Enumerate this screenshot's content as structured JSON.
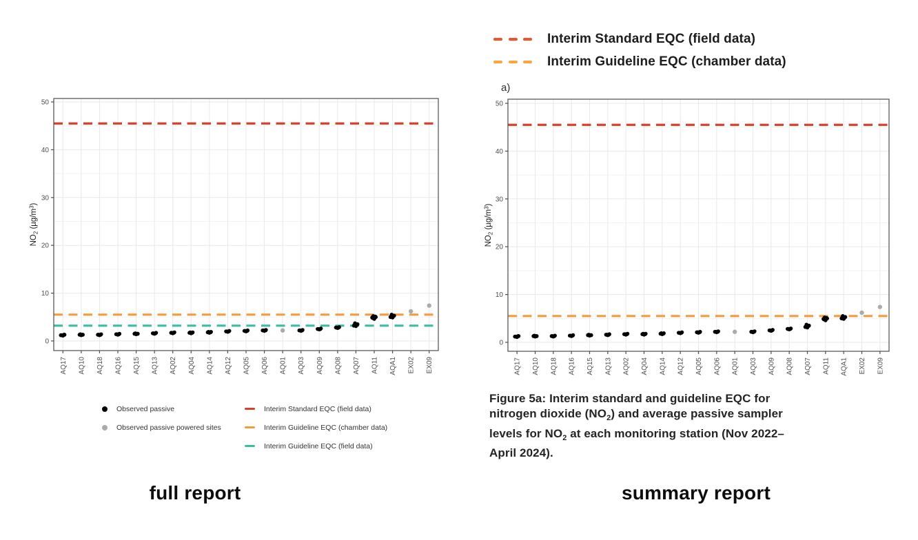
{
  "colors": {
    "ref_red": "#D9402B",
    "ref_orange": "#F59B3D",
    "ref_teal": "#3DBCA3",
    "legend_red": "#F4502A",
    "legend_orange": "#FBA53C",
    "point_black": "#000000",
    "point_gray": "#ABABAB",
    "grid_major": "#E9E9E9",
    "grid_minor": "#F3F3F3",
    "panel_border": "#4C4C4C",
    "tick_text": "#4D4D4D"
  },
  "top_legend": {
    "items": [
      {
        "label": "Interim Standard EQC (field data)",
        "color": "#F4502A"
      },
      {
        "label": "Interim Guideline EQC (chamber data)",
        "color": "#FBA53C"
      }
    ]
  },
  "left_legend": {
    "points": [
      {
        "label": "Observed passive",
        "color": "#000000"
      },
      {
        "label": "Observed passive powered sites",
        "color": "#ABABAB"
      }
    ],
    "lines": [
      {
        "label": "Interim Standard EQC (field data)",
        "color": "#D9402B"
      },
      {
        "label": "Interim Guideline EQC (chamber data)",
        "color": "#F59B3D"
      },
      {
        "label": "Interim Guideline EQC (field data)",
        "color": "#3DBCA3"
      }
    ]
  },
  "captions": {
    "left": "full report",
    "right": "summary report"
  },
  "figure_caption": {
    "seg1": "Figure 5a: Interim standard and guideline EQC for nitrogen dioxide (NO",
    "sub1": "2",
    "seg2": ") and average passive sampler levels for NO",
    "sub2": "2",
    "seg3": " at each monitoring station (Nov 2022–April 2024)."
  },
  "chart_data": [
    {
      "id": "full_report",
      "type": "scatter",
      "title": "full report",
      "ylabel": "NO2 (µg/m3)",
      "ylabel_parts": {
        "pre": "NO",
        "sub": "2",
        "mid": " (µg/m",
        "sup": "3",
        "post": ")"
      },
      "ylim": [
        0,
        50
      ],
      "yticks": [
        0,
        10,
        20,
        30,
        40,
        50
      ],
      "grid": true,
      "legend_position": "bottom",
      "categories": [
        "AQ17",
        "AQ10",
        "AQ18",
        "AQ16",
        "AQ15",
        "AQ13",
        "AQ02",
        "AQ04",
        "AQ14",
        "AQ12",
        "AQ05",
        "AQ06",
        "AQ01",
        "AQ03",
        "AQ09",
        "AQ08",
        "AQ07",
        "AQ11",
        "AQA1",
        "EX02",
        "EX09"
      ],
      "series": [
        {
          "name": "Observed passive",
          "color": "#000000",
          "points": {
            "AQ17": [
              1.1,
              1.2,
              1.3,
              1.2,
              1.3,
              1.2
            ],
            "AQ10": [
              1.2,
              1.3,
              1.3,
              1.4,
              1.3
            ],
            "AQ18": [
              1.2,
              1.3,
              1.4,
              1.3,
              1.3
            ],
            "AQ16": [
              1.3,
              1.4,
              1.5,
              1.4,
              1.4
            ],
            "AQ15": [
              1.4,
              1.5,
              1.5,
              1.6,
              1.5
            ],
            "AQ13": [
              1.5,
              1.6,
              1.7,
              1.6,
              1.6
            ],
            "AQ02": [
              1.6,
              1.7,
              1.8,
              1.7,
              1.7
            ],
            "AQ04": [
              1.6,
              1.7,
              1.8,
              1.8,
              1.7
            ],
            "AQ14": [
              1.7,
              1.8,
              1.9,
              1.9,
              1.8
            ],
            "AQ12": [
              1.9,
              2.0,
              2.1,
              2.0,
              2.0
            ],
            "AQ05": [
              2.0,
              2.1,
              2.2,
              2.1,
              2.1
            ],
            "AQ06": [
              2.1,
              2.2,
              2.3,
              2.2,
              2.2
            ],
            "AQ03": [
              2.1,
              2.2,
              2.3,
              2.2,
              2.2
            ],
            "AQ09": [
              2.4,
              2.5,
              2.6,
              2.5,
              2.5
            ],
            "AQ08": [
              2.7,
              2.8,
              2.9,
              2.8,
              2.8
            ],
            "AQ07": [
              3.1,
              3.3,
              3.5,
              3.7,
              3.4,
              3.2
            ],
            "AQ11": [
              4.6,
              4.8,
              5.0,
              5.2,
              5.1,
              4.9
            ],
            "AQA1": [
              4.9,
              5.1,
              5.3,
              5.5,
              5.2,
              5.0
            ]
          }
        },
        {
          "name": "Observed passive powered sites",
          "color": "#ABABAB",
          "points": {
            "AQ01": [
              2.2
            ],
            "EX02": [
              6.2
            ],
            "EX09": [
              7.4
            ]
          }
        }
      ],
      "ref_lines": [
        {
          "label": "Interim Standard EQC (field data)",
          "value": 45.5,
          "color": "#D9402B"
        },
        {
          "label": "Interim Guideline EQC (chamber data)",
          "value": 5.5,
          "color": "#F59B3D"
        },
        {
          "label": "Interim Guideline EQC (field data)",
          "value": 3.2,
          "color": "#3DBCA3"
        }
      ]
    },
    {
      "id": "summary_report",
      "type": "scatter",
      "title": "summary report",
      "panel_label": "a)",
      "ylabel": "NO2 (µg/m3)",
      "ylabel_parts": {
        "pre": "NO",
        "sub": "2",
        "mid": " (µg/m",
        "sup": "3",
        "post": ")"
      },
      "ylim": [
        0,
        50
      ],
      "yticks": [
        0,
        10,
        20,
        30,
        40,
        50
      ],
      "grid": true,
      "legend_position": "top",
      "categories": [
        "AQ17",
        "AQ10",
        "AQ18",
        "AQ16",
        "AQ15",
        "AQ13",
        "AQ02",
        "AQ04",
        "AQ14",
        "AQ12",
        "AQ05",
        "AQ06",
        "AQ01",
        "AQ03",
        "AQ09",
        "AQ08",
        "AQ07",
        "AQ11",
        "AQA1",
        "EX02",
        "EX09"
      ],
      "series": [
        {
          "name": "Observed passive",
          "color": "#000000",
          "points": {
            "AQ17": [
              1.1,
              1.2,
              1.3,
              1.2,
              1.3,
              1.2
            ],
            "AQ10": [
              1.2,
              1.3,
              1.3,
              1.4,
              1.3
            ],
            "AQ18": [
              1.2,
              1.3,
              1.4,
              1.3,
              1.3
            ],
            "AQ16": [
              1.3,
              1.4,
              1.5,
              1.4,
              1.4
            ],
            "AQ15": [
              1.4,
              1.5,
              1.5,
              1.6,
              1.5
            ],
            "AQ13": [
              1.5,
              1.6,
              1.7,
              1.6,
              1.6
            ],
            "AQ02": [
              1.6,
              1.7,
              1.8,
              1.7,
              1.7
            ],
            "AQ04": [
              1.6,
              1.7,
              1.8,
              1.8,
              1.7
            ],
            "AQ14": [
              1.7,
              1.8,
              1.9,
              1.9,
              1.8
            ],
            "AQ12": [
              1.9,
              2.0,
              2.1,
              2.0,
              2.0
            ],
            "AQ05": [
              2.0,
              2.1,
              2.2,
              2.1,
              2.1
            ],
            "AQ06": [
              2.1,
              2.2,
              2.3,
              2.2,
              2.2
            ],
            "AQ03": [
              2.1,
              2.2,
              2.3,
              2.2,
              2.2
            ],
            "AQ09": [
              2.4,
              2.5,
              2.6,
              2.5,
              2.5
            ],
            "AQ08": [
              2.7,
              2.8,
              2.9,
              2.8,
              2.8
            ],
            "AQ07": [
              3.1,
              3.3,
              3.5,
              3.7,
              3.4,
              3.2
            ],
            "AQ11": [
              4.6,
              4.8,
              5.0,
              5.2,
              5.1,
              4.9
            ],
            "AQA1": [
              4.9,
              5.1,
              5.3,
              5.5,
              5.2,
              5.0
            ]
          }
        },
        {
          "name": "Observed passive powered sites",
          "color": "#ABABAB",
          "points": {
            "AQ01": [
              2.2
            ],
            "EX02": [
              6.2
            ],
            "EX09": [
              7.4
            ]
          }
        }
      ],
      "ref_lines": [
        {
          "label": "Interim Standard EQC (field data)",
          "value": 45.5,
          "color": "#D9402B"
        },
        {
          "label": "Interim Guideline EQC (chamber data)",
          "value": 5.5,
          "color": "#F59B3D"
        }
      ]
    }
  ]
}
